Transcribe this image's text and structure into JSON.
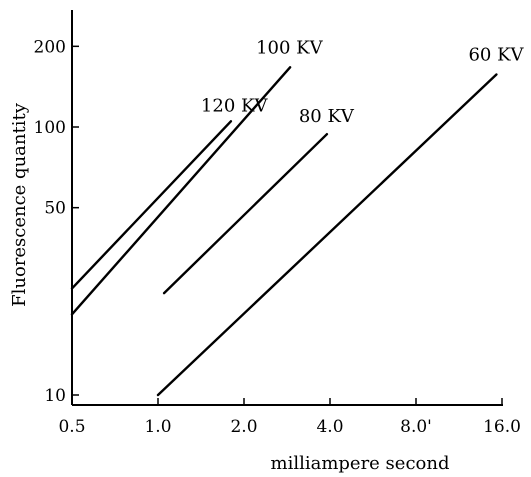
{
  "chart_data": {
    "type": "line",
    "title": "",
    "xlabel": "milliampere second",
    "ylabel": "Fluorescence quantity",
    "x_scale": "log2",
    "y_scale": "log",
    "xlim": [
      0.5,
      22
    ],
    "ylim": [
      10,
      260
    ],
    "x_ticks": [
      0.5,
      1.0,
      2.0,
      4.0,
      8.0,
      16.0
    ],
    "x_tick_labels": [
      "0.5",
      "1.0",
      "2.0",
      "4.0",
      "8.0'",
      "16.0"
    ],
    "y_ticks": [
      10,
      50,
      100,
      200
    ],
    "y_tick_labels": [
      "10",
      "50",
      "100",
      "200"
    ],
    "grid": false,
    "series": [
      {
        "name": "120 KV",
        "x": [
          0.5,
          1.8
        ],
        "y": [
          25,
          105
        ]
      },
      {
        "name": "100 KV",
        "x": [
          0.5,
          2.9
        ],
        "y": [
          20,
          167
        ]
      },
      {
        "name": "80 KV",
        "x": [
          1.05,
          3.9
        ],
        "y": [
          24,
          94
        ]
      },
      {
        "name": "60 KV",
        "x": [
          1.0,
          15.3
        ],
        "y": [
          10,
          157
        ]
      }
    ]
  }
}
